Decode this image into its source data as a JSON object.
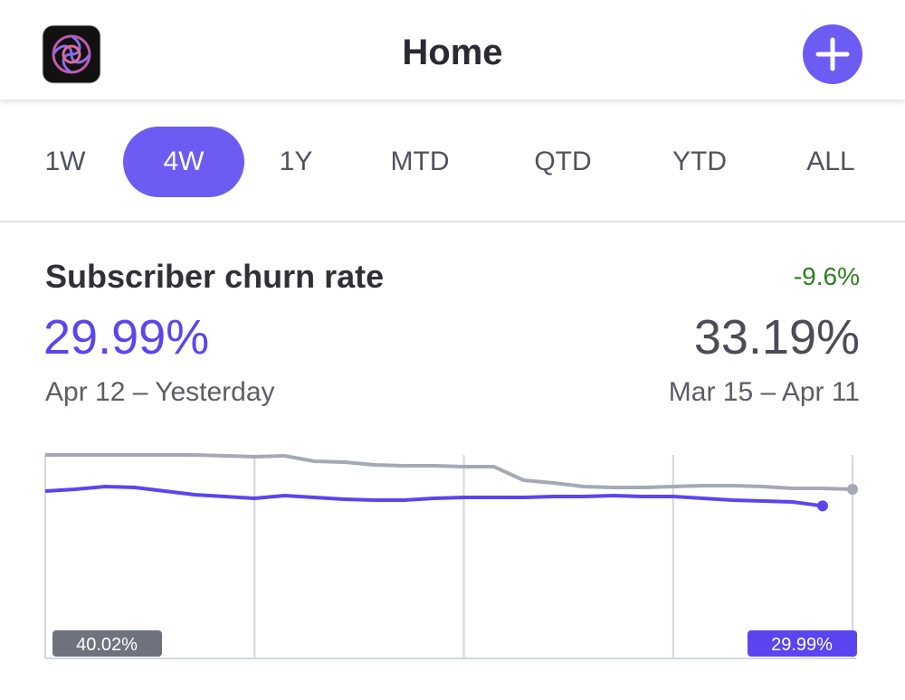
{
  "header": {
    "title": "Home"
  },
  "tabs": {
    "items": [
      "1W",
      "4W",
      "1Y",
      "MTD",
      "QTD",
      "YTD",
      "ALL"
    ],
    "selected": 1
  },
  "metric": {
    "title": "Subscriber churn rate",
    "change": "-9.6%",
    "value": "29.99%",
    "previous_value": "33.19%",
    "period": "Apr 12 – Yesterday",
    "previous_period": "Mar 15 – Apr 11"
  },
  "chart_data": {
    "type": "line",
    "x": [
      0,
      1,
      2,
      3,
      4,
      5,
      6,
      7,
      8,
      9,
      10,
      11,
      12,
      13,
      14,
      15,
      16,
      17,
      18,
      19,
      20,
      21,
      22,
      23,
      24,
      25,
      26,
      27
    ],
    "xlim": [
      0,
      27
    ],
    "xticks": [
      0,
      7,
      14,
      21,
      27
    ],
    "ylim": [
      0,
      40.02
    ],
    "yticks": [
      {
        "value": 40.02,
        "label": "40.02%"
      }
    ],
    "series": [
      {
        "color": "#a3a9b5",
        "values": [
          40.02,
          40.02,
          40.02,
          40.02,
          40.02,
          40.02,
          39.84,
          39.67,
          39.84,
          38.78,
          38.6,
          38.06,
          37.89,
          37.89,
          37.71,
          37.71,
          35.04,
          34.51,
          33.8,
          33.62,
          33.62,
          33.8,
          33.97,
          33.97,
          33.8,
          33.44,
          33.44,
          33.26
        ]
      },
      {
        "color": "#5b45f0",
        "values": [
          32.91,
          33.26,
          33.8,
          33.62,
          32.91,
          32.19,
          31.84,
          31.48,
          32.02,
          31.66,
          31.31,
          31.13,
          31.13,
          31.48,
          31.66,
          31.66,
          31.66,
          31.84,
          31.84,
          32.02,
          31.84,
          31.84,
          31.48,
          31.13,
          30.95,
          30.77,
          29.99,
          null
        ],
        "end_label": "29.99%"
      }
    ]
  }
}
